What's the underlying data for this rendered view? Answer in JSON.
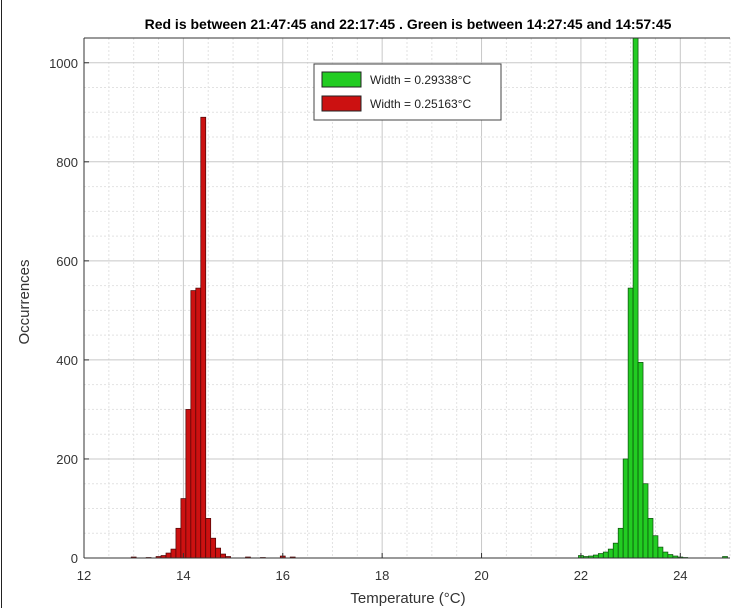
{
  "chart_data": {
    "type": "bar",
    "title": "Red is between 21:47:45 and 22:17:45 . Green is between 14:27:45 and 14:57:45",
    "xlabel": "Temperature (°C)",
    "ylabel": "Occurrences",
    "xlim": [
      12,
      25
    ],
    "ylim": [
      0,
      1050
    ],
    "xticks": [
      "12",
      "14",
      "16",
      "18",
      "20",
      "22",
      "24"
    ],
    "yticks": [
      "0",
      "200",
      "400",
      "600",
      "800",
      "1000"
    ],
    "grid": true,
    "minor_grid": true,
    "legend_position": "top-center",
    "bin_width": 0.1,
    "series": [
      {
        "name": "Width = 0.29338°C",
        "color": "#22cc22",
        "edge_color": "#0b4d0b",
        "bins": [
          {
            "x": 22.0,
            "y": 5
          },
          {
            "x": 22.1,
            "y": 3
          },
          {
            "x": 22.2,
            "y": 4
          },
          {
            "x": 22.3,
            "y": 6
          },
          {
            "x": 22.4,
            "y": 9
          },
          {
            "x": 22.5,
            "y": 12
          },
          {
            "x": 22.6,
            "y": 18
          },
          {
            "x": 22.7,
            "y": 30
          },
          {
            "x": 22.8,
            "y": 60
          },
          {
            "x": 22.9,
            "y": 200
          },
          {
            "x": 23.0,
            "y": 545
          },
          {
            "x": 23.1,
            "y": 1050
          },
          {
            "x": 23.2,
            "y": 395
          },
          {
            "x": 23.3,
            "y": 150
          },
          {
            "x": 23.4,
            "y": 80
          },
          {
            "x": 23.5,
            "y": 45
          },
          {
            "x": 23.6,
            "y": 22
          },
          {
            "x": 23.7,
            "y": 12
          },
          {
            "x": 23.8,
            "y": 7
          },
          {
            "x": 23.9,
            "y": 4
          },
          {
            "x": 24.0,
            "y": 2
          },
          {
            "x": 24.1,
            "y": 1
          },
          {
            "x": 24.9,
            "y": 3
          }
        ]
      },
      {
        "name": "Width = 0.25163°C",
        "color": "#cc1111",
        "edge_color": "#4a0505",
        "bins": [
          {
            "x": 13.0,
            "y": 2
          },
          {
            "x": 13.3,
            "y": 1
          },
          {
            "x": 13.5,
            "y": 3
          },
          {
            "x": 13.6,
            "y": 5
          },
          {
            "x": 13.7,
            "y": 10
          },
          {
            "x": 13.8,
            "y": 18
          },
          {
            "x": 13.9,
            "y": 60
          },
          {
            "x": 14.0,
            "y": 120
          },
          {
            "x": 14.1,
            "y": 300
          },
          {
            "x": 14.2,
            "y": 540
          },
          {
            "x": 14.3,
            "y": 545
          },
          {
            "x": 14.4,
            "y": 890
          },
          {
            "x": 14.5,
            "y": 80
          },
          {
            "x": 14.6,
            "y": 40
          },
          {
            "x": 14.7,
            "y": 20
          },
          {
            "x": 14.8,
            "y": 8
          },
          {
            "x": 14.9,
            "y": 3
          },
          {
            "x": 15.3,
            "y": 2
          },
          {
            "x": 15.6,
            "y": 1
          },
          {
            "x": 16.0,
            "y": 4
          },
          {
            "x": 16.2,
            "y": 2
          }
        ]
      }
    ]
  }
}
